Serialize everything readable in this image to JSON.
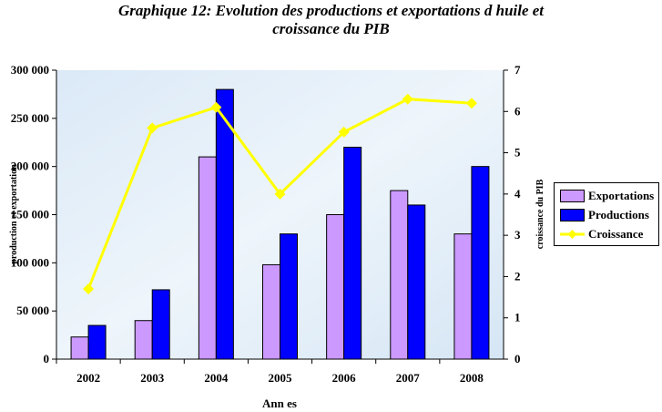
{
  "chart_data": {
    "type": "bar",
    "title": "Graphique 12: Evolution des productions et exportations d huile et croissance du PIB",
    "title_lines": [
      "Graphique 12: Evolution des productions et exportations d huile et",
      "croissance du PIB"
    ],
    "xlabel": "Ann es",
    "ylabel": "production et exportation",
    "y2label": "croissance du PIB",
    "categories": [
      "2002",
      "2003",
      "2004",
      "2005",
      "2006",
      "2007",
      "2008"
    ],
    "ylim": [
      0,
      300000
    ],
    "y2lim": [
      0,
      7
    ],
    "yticks": [
      "0",
      "50 000",
      "100 000",
      "150 000",
      "200 000",
      "250 000",
      "300 000"
    ],
    "y2ticks": [
      "0",
      "1",
      "2",
      "3",
      "4",
      "5",
      "6",
      "7"
    ],
    "series": [
      {
        "name": "Exportations",
        "type": "bar",
        "axis": "left",
        "color": "#cc99ff",
        "values": [
          23000,
          40000,
          210000,
          98000,
          150000,
          175000,
          130000
        ]
      },
      {
        "name": "Productions",
        "type": "bar",
        "axis": "left",
        "color": "#0000ff",
        "values": [
          35000,
          72000,
          280000,
          130000,
          220000,
          160000,
          200000
        ]
      },
      {
        "name": "Croissance",
        "type": "line",
        "axis": "right",
        "color": "#ffff00",
        "values": [
          1.7,
          5.6,
          6.1,
          4.0,
          5.5,
          6.3,
          6.2
        ]
      }
    ],
    "legend_position": "right"
  }
}
